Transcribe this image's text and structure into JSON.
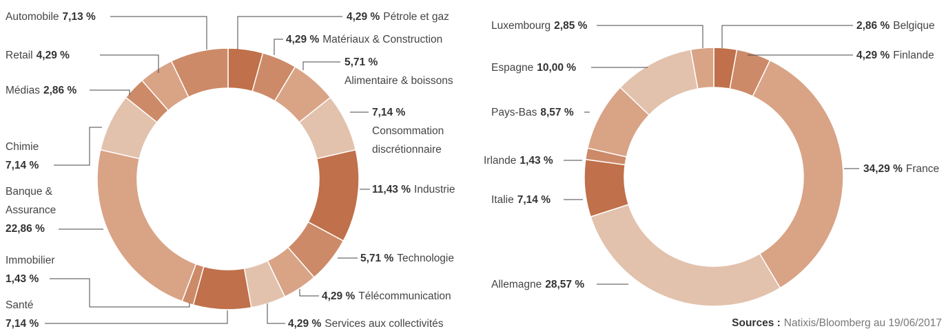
{
  "chart_data": [
    {
      "type": "pie",
      "categories": [
        "Pétrole et gaz",
        "Matériaux & Construction",
        "Alimentaire & boissons",
        "Consommation discrétionnaire",
        "Industrie",
        "Technologie",
        "Télécommunication",
        "Services aux collectivités",
        "Santé",
        "Immobilier",
        "Banque & Assurance",
        "Chimie",
        "Médias",
        "Retail",
        "Automobile"
      ],
      "values": [
        4.29,
        4.29,
        5.71,
        7.14,
        11.43,
        5.71,
        4.29,
        4.29,
        7.14,
        1.43,
        22.86,
        7.14,
        2.86,
        4.29,
        7.13
      ],
      "value_labels": [
        "4,29 %",
        "4,29 %",
        "5,71 %",
        "7,14 %",
        "11,43 %",
        "5,71 %",
        "4,29 %",
        "4,29 %",
        "7,14 %",
        "1,43 %",
        "22,86 %",
        "7,14 %",
        "2,86 %",
        "4,29 %",
        "7,13 %"
      ],
      "colors": [
        "#c0704a",
        "#cd8a68",
        "#d9a386",
        "#e2c2ad",
        "#c0704a",
        "#cd8a68",
        "#d9a386",
        "#e2c2ad",
        "#c0704a",
        "#cd8a68",
        "#d9a386",
        "#e2c2ad",
        "#cd8a68",
        "#d9a386",
        "#cd8a68"
      ]
    },
    {
      "type": "pie",
      "categories": [
        "Belgique",
        "Finlande",
        "France",
        "Allemagne",
        "Italie",
        "Irlande",
        "Pays-Bas",
        "Espagne",
        "Luxembourg"
      ],
      "values": [
        2.86,
        4.29,
        34.29,
        28.57,
        7.14,
        1.43,
        8.57,
        10.0,
        2.85
      ],
      "value_labels": [
        "2,86 %",
        "4,29 %",
        "34,29 %",
        "28,57 %",
        "7,14 %",
        "1,43 %",
        "8,57 %",
        "10,00 %",
        "2,85 %"
      ],
      "colors": [
        "#c0704a",
        "#cd8a68",
        "#d9a386",
        "#e2c2ad",
        "#c0704a",
        "#cd8a68",
        "#d9a386",
        "#e2c2ad",
        "#d9a386"
      ]
    }
  ],
  "source": {
    "label": "Sources :",
    "text": "Natixis/Bloomberg au 19/06/2017"
  }
}
